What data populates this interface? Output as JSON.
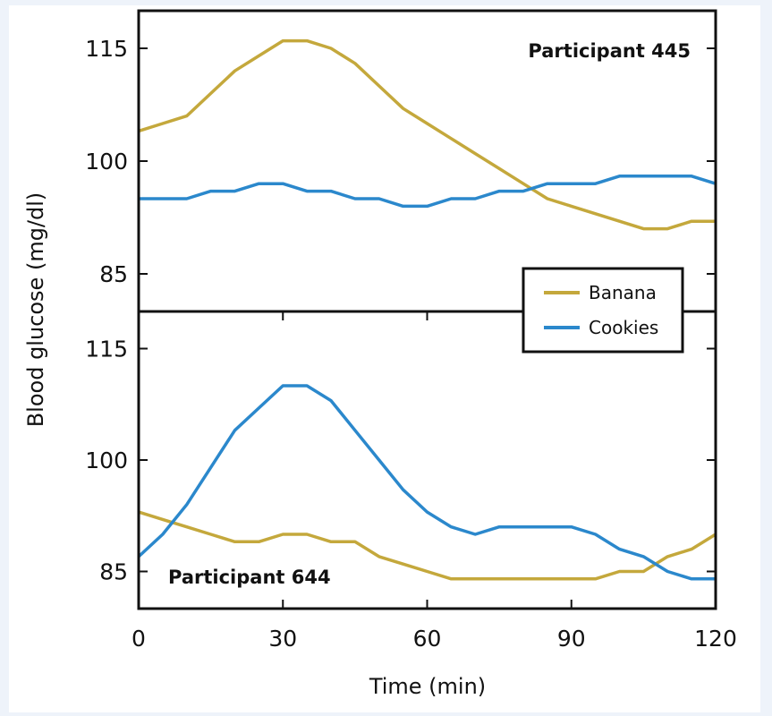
{
  "chart_data": [
    {
      "type": "line",
      "panel": "top",
      "annotation": "Participant 445",
      "x": [
        0,
        5,
        10,
        15,
        20,
        25,
        30,
        35,
        40,
        45,
        50,
        55,
        60,
        65,
        70,
        75,
        80,
        85,
        90,
        95,
        100,
        105,
        110,
        115,
        120
      ],
      "series": [
        {
          "name": "Banana",
          "color": "#c4a83c",
          "values": [
            104,
            105,
            106,
            109,
            112,
            114,
            116,
            116,
            115,
            113,
            110,
            107,
            105,
            103,
            101,
            99,
            97,
            95,
            94,
            93,
            92,
            91,
            91,
            92,
            92
          ]
        },
        {
          "name": "Cookies",
          "color": "#2b88cc",
          "values": [
            95,
            95,
            95,
            96,
            96,
            97,
            97,
            96,
            96,
            95,
            95,
            94,
            94,
            95,
            95,
            96,
            96,
            97,
            97,
            97,
            98,
            98,
            98,
            98,
            97
          ]
        }
      ],
      "yticks": [
        85,
        100,
        115
      ],
      "ylim": [
        80,
        120
      ],
      "xlim": [
        0,
        120
      ]
    },
    {
      "type": "line",
      "panel": "bottom",
      "annotation": "Participant 644",
      "x": [
        0,
        5,
        10,
        15,
        20,
        25,
        30,
        35,
        40,
        45,
        50,
        55,
        60,
        65,
        70,
        75,
        80,
        85,
        90,
        95,
        100,
        105,
        110,
        115,
        120
      ],
      "series": [
        {
          "name": "Banana",
          "color": "#c4a83c",
          "values": [
            93,
            92,
            91,
            90,
            89,
            89,
            90,
            90,
            89,
            89,
            87,
            86,
            85,
            84,
            84,
            84,
            84,
            84,
            84,
            84,
            85,
            85,
            87,
            88,
            90
          ]
        },
        {
          "name": "Cookies",
          "color": "#2b88cc",
          "values": [
            87,
            90,
            94,
            99,
            104,
            107,
            110,
            110,
            108,
            104,
            100,
            96,
            93,
            91,
            90,
            91,
            91,
            91,
            91,
            90,
            88,
            87,
            85,
            84,
            84
          ]
        }
      ],
      "yticks": [
        85,
        100,
        115
      ],
      "ylim": [
        80,
        120
      ],
      "xlim": [
        0,
        120
      ],
      "xticks": [
        0,
        30,
        60,
        90,
        120
      ]
    }
  ],
  "xlabel": "Time (min)",
  "ylabel": "Blood glucose (mg/dl)",
  "legend": {
    "placement": "center-right",
    "entries": [
      "Banana",
      "Cookies"
    ]
  }
}
